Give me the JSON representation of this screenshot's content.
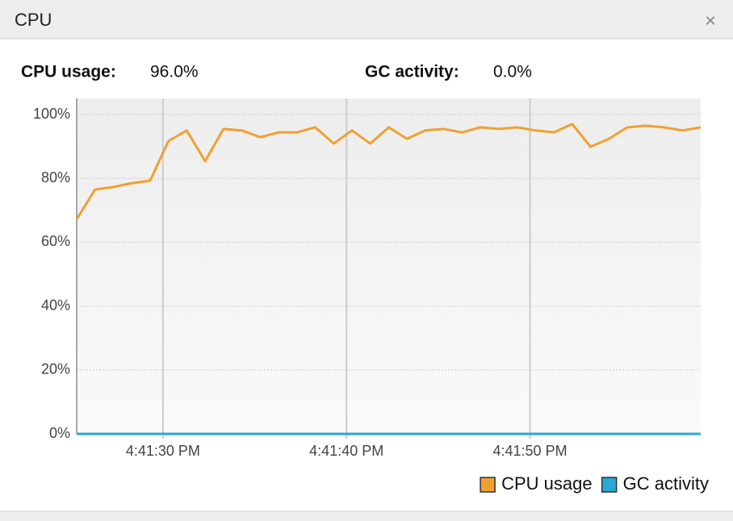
{
  "panel": {
    "title": "CPU",
    "close": "×"
  },
  "summary": [
    {
      "label": "CPU usage:",
      "value": "96.0%"
    },
    {
      "label": "GC activity:",
      "value": "0.0%"
    }
  ],
  "chart_data": {
    "type": "line",
    "x": [
      25.3,
      26.3,
      27.3,
      28.3,
      29.3,
      30.3,
      31.3,
      32.3,
      33.3,
      34.3,
      35.3,
      36.3,
      37.3,
      38.3,
      39.3,
      40.3,
      41.3,
      42.3,
      43.3,
      44.3,
      45.3,
      46.3,
      47.3,
      48.3,
      49.3,
      50.3,
      51.3,
      52.3,
      53.3,
      54.3,
      55.3,
      56.3,
      57.3,
      58.3,
      59.3
    ],
    "series": [
      {
        "name": "CPU usage",
        "color": "#f0a030",
        "values": [
          67.2,
          76.5,
          77.3,
          78.5,
          79.3,
          91.7,
          95,
          85.4,
          95.5,
          95,
          92.9,
          94.4,
          94.4,
          96,
          90.9,
          95,
          90.9,
          96,
          92.4,
          95,
          95.5,
          94.4,
          96,
          95.5,
          96,
          95,
          94.4,
          97,
          89.9,
          92.4,
          96,
          96.5,
          96,
          95,
          96
        ]
      },
      {
        "name": "GC activity",
        "color": "#2aa7d6",
        "values": [
          0,
          0,
          0,
          0,
          0,
          0,
          0,
          0,
          0,
          0,
          0,
          0,
          0,
          0,
          0,
          0,
          0,
          0,
          0,
          0,
          0,
          0,
          0,
          0,
          0,
          0,
          0,
          0,
          0,
          0,
          0,
          0,
          0,
          0,
          0
        ]
      }
    ],
    "xlim": [
      25.3,
      59.3
    ],
    "xticks": [
      {
        "value": 30,
        "label": "4:41:30 PM"
      },
      {
        "value": 40,
        "label": "4:41:40 PM"
      },
      {
        "value": 50,
        "label": "4:41:50 PM"
      }
    ],
    "ylim": [
      0,
      100
    ],
    "yticks": [
      {
        "value": 0,
        "label": "0%"
      },
      {
        "value": 20,
        "label": "20%"
      },
      {
        "value": 40,
        "label": "40%"
      },
      {
        "value": 60,
        "label": "60%"
      },
      {
        "value": 80,
        "label": "80%"
      },
      {
        "value": 100,
        "label": "100%"
      }
    ],
    "grid": true,
    "legend": "bottom-right"
  }
}
